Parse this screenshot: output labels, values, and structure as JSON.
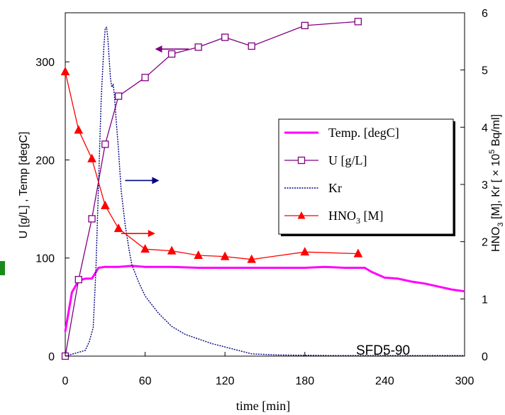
{
  "chart_data": {
    "type": "line",
    "title": "",
    "annotation": "SFD5-90",
    "xlabel": "time [min]",
    "ylabel_left": "U [g/L] , Temp [degC]",
    "ylabel_right_parts": {
      "a": "HNO",
      "a_sub": "3",
      "b": " [M],  Kr [ × 10",
      "b_sup": "5",
      "c": " Bq/ml]"
    },
    "xlim": [
      0,
      300
    ],
    "ylim_left": [
      0,
      350
    ],
    "ylim_right": [
      0,
      6
    ],
    "xticks": [
      "0",
      "60",
      "120",
      "180",
      "240",
      "300"
    ],
    "yticks_left": [
      "0",
      "100",
      "200",
      "300"
    ],
    "yticks_right": [
      "0",
      "1",
      "2",
      "3",
      "4",
      "5",
      "6"
    ],
    "legend": {
      "position": "right",
      "entries": [
        {
          "label": "Temp. [degC]",
          "series": "temp"
        },
        {
          "label": "U [g/L]",
          "series": "u"
        },
        {
          "label": "Kr",
          "series": "kr"
        },
        {
          "label": "HNO",
          "label_sub": "3",
          "label_tail": " [M]",
          "series": "hno3"
        }
      ]
    },
    "series": [
      {
        "id": "temp",
        "axis": "left",
        "color": "#ff00ff",
        "style": "thick",
        "x": [
          0,
          5,
          10,
          15,
          20,
          25,
          30,
          40,
          50,
          60,
          70,
          80,
          100,
          120,
          150,
          180,
          195,
          210,
          225,
          230,
          240,
          250,
          260,
          270,
          280,
          290,
          300
        ],
        "y": [
          25,
          65,
          77,
          79,
          79,
          90,
          91,
          91,
          92,
          91,
          91,
          91,
          90,
          90,
          90,
          90,
          91,
          90,
          90,
          86,
          80,
          79,
          76,
          74,
          71,
          68,
          66
        ]
      },
      {
        "id": "u",
        "axis": "left",
        "color": "#800080",
        "marker": "square",
        "x": [
          0,
          10,
          20,
          30,
          40,
          60,
          80,
          100,
          120,
          140,
          180,
          220
        ],
        "y": [
          0,
          78,
          140,
          216,
          265,
          284,
          308,
          315,
          325,
          316,
          337,
          341
        ]
      },
      {
        "id": "kr",
        "axis": "right",
        "color": "#000080",
        "style": "dotted",
        "x": [
          0,
          15,
          18,
          21,
          23,
          25,
          27,
          29,
          30,
          31,
          32,
          33,
          34,
          35,
          36,
          37,
          38,
          40,
          42,
          45,
          48,
          50,
          55,
          60,
          70,
          80,
          90,
          100,
          110,
          120,
          130,
          140,
          160,
          200,
          300
        ],
        "y": [
          0,
          0.1,
          0.25,
          0.5,
          1.5,
          3.0,
          4.5,
          5.4,
          5.72,
          5.75,
          5.55,
          5.2,
          4.85,
          4.7,
          4.75,
          4.55,
          4.2,
          3.6,
          2.9,
          2.3,
          1.85,
          1.6,
          1.3,
          1.05,
          0.75,
          0.52,
          0.38,
          0.3,
          0.22,
          0.16,
          0.1,
          0.04,
          0.02,
          0.01,
          0.01
        ]
      },
      {
        "id": "hno3",
        "axis": "right",
        "color": "#ff0000",
        "marker": "triangle",
        "x": [
          0,
          10,
          20,
          30,
          40,
          60,
          80,
          100,
          120,
          140,
          180,
          220
        ],
        "y": [
          4.97,
          3.95,
          3.45,
          2.63,
          2.23,
          1.87,
          1.84,
          1.76,
          1.74,
          1.69,
          1.82,
          1.79
        ]
      }
    ],
    "arrows": [
      {
        "target": "u",
        "direction": "left",
        "at_x": 93,
        "at_y_left": 313
      },
      {
        "target": "kr",
        "direction": "right",
        "at_x": 45,
        "at_y_left": 179
      },
      {
        "target": "hno3",
        "direction": "right",
        "at_x": 42,
        "at_y_left": 125
      }
    ]
  }
}
